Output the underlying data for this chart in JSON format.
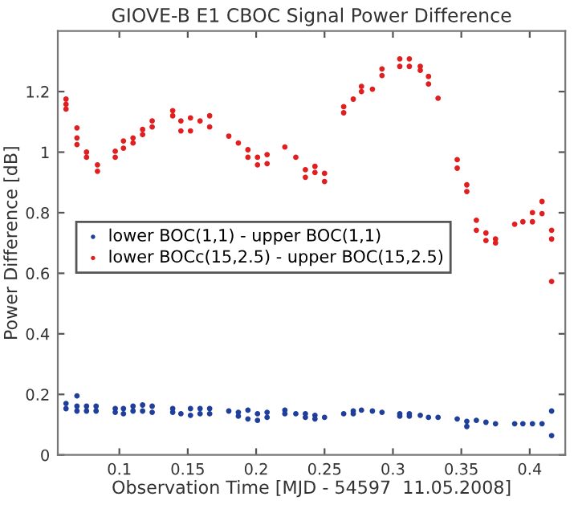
{
  "chart_data": {
    "type": "scatter",
    "title": "GIOVE-B E1 CBOC Signal Power Difference",
    "xlabel": "Observation Time [MJD - 54597  11.05.2008]",
    "ylabel": "Power Difference [dB]",
    "xlim": [
      0.055,
      0.426
    ],
    "xticks": [
      0.1,
      0.15,
      0.2,
      0.25,
      0.3,
      0.35,
      0.4
    ],
    "ylim": [
      0,
      1.4
    ],
    "yticks": [
      0,
      0.2,
      0.4,
      0.6,
      0.8,
      1,
      1.2
    ],
    "grid": false,
    "legend": "left",
    "marker": "circle",
    "series": [
      {
        "name": "lower BOC(1,1) - upper BOC(1,1)",
        "color": "#1f3f9a",
        "x": [
          0.061,
          0.061,
          0.069,
          0.069,
          0.069,
          0.076,
          0.076,
          0.083,
          0.083,
          0.097,
          0.097,
          0.103,
          0.103,
          0.11,
          0.11,
          0.117,
          0.117,
          0.124,
          0.124,
          0.139,
          0.139,
          0.145,
          0.152,
          0.152,
          0.159,
          0.159,
          0.166,
          0.166,
          0.18,
          0.187,
          0.187,
          0.194,
          0.194,
          0.201,
          0.201,
          0.208,
          0.208,
          0.221,
          0.221,
          0.229,
          0.236,
          0.236,
          0.243,
          0.243,
          0.25,
          0.264,
          0.271,
          0.271,
          0.277,
          0.285,
          0.292,
          0.305,
          0.305,
          0.312,
          0.312,
          0.32,
          0.326,
          0.333,
          0.347,
          0.354,
          0.354,
          0.361,
          0.368,
          0.375,
          0.389,
          0.395,
          0.402,
          0.409,
          0.416,
          0.416
        ],
        "values": [
          0.17,
          0.153,
          0.195,
          0.161,
          0.145,
          0.161,
          0.145,
          0.161,
          0.145,
          0.153,
          0.141,
          0.153,
          0.136,
          0.161,
          0.145,
          0.165,
          0.145,
          0.161,
          0.141,
          0.153,
          0.141,
          0.136,
          0.153,
          0.131,
          0.153,
          0.136,
          0.153,
          0.136,
          0.145,
          0.141,
          0.128,
          0.148,
          0.119,
          0.136,
          0.114,
          0.141,
          0.124,
          0.148,
          0.136,
          0.136,
          0.136,
          0.124,
          0.131,
          0.119,
          0.124,
          0.136,
          0.145,
          0.136,
          0.148,
          0.145,
          0.141,
          0.136,
          0.128,
          0.136,
          0.128,
          0.131,
          0.124,
          0.124,
          0.119,
          0.111,
          0.094,
          0.114,
          0.108,
          0.103,
          0.103,
          0.103,
          0.103,
          0.103,
          0.145,
          0.064
        ]
      },
      {
        "name": "lower BOCc(15,2.5) - upper BOC(15,2.5)",
        "color": "#e02020",
        "x": [
          0.061,
          0.061,
          0.061,
          0.069,
          0.069,
          0.069,
          0.076,
          0.076,
          0.084,
          0.084,
          0.097,
          0.097,
          0.103,
          0.103,
          0.11,
          0.11,
          0.117,
          0.117,
          0.124,
          0.124,
          0.139,
          0.139,
          0.145,
          0.145,
          0.152,
          0.152,
          0.159,
          0.166,
          0.166,
          0.18,
          0.187,
          0.194,
          0.194,
          0.201,
          0.201,
          0.208,
          0.208,
          0.221,
          0.229,
          0.236,
          0.236,
          0.243,
          0.243,
          0.25,
          0.25,
          0.264,
          0.264,
          0.271,
          0.277,
          0.277,
          0.285,
          0.292,
          0.292,
          0.305,
          0.305,
          0.312,
          0.312,
          0.32,
          0.32,
          0.326,
          0.326,
          0.333,
          0.347,
          0.347,
          0.354,
          0.354,
          0.361,
          0.361,
          0.368,
          0.368,
          0.375,
          0.375,
          0.389,
          0.395,
          0.402,
          0.402,
          0.409,
          0.409,
          0.416,
          0.416,
          0.416
        ],
        "values": [
          1.175,
          1.158,
          1.142,
          1.08,
          1.047,
          1.025,
          1.0,
          0.983,
          0.958,
          0.937,
          1.003,
          0.983,
          1.037,
          1.013,
          1.047,
          1.03,
          1.075,
          1.058,
          1.103,
          1.083,
          1.137,
          1.12,
          1.103,
          1.07,
          1.113,
          1.07,
          1.103,
          1.12,
          1.083,
          1.053,
          1.03,
          1.008,
          0.983,
          0.983,
          0.958,
          0.992,
          0.962,
          1.017,
          0.983,
          0.942,
          0.917,
          0.953,
          0.933,
          0.93,
          0.903,
          1.15,
          1.13,
          1.175,
          1.217,
          1.2,
          1.208,
          1.275,
          1.253,
          1.308,
          1.283,
          1.308,
          1.283,
          1.283,
          1.27,
          1.25,
          1.225,
          1.178,
          0.975,
          0.947,
          0.892,
          0.87,
          0.775,
          0.742,
          0.733,
          0.708,
          0.713,
          0.7,
          0.762,
          0.77,
          0.8,
          0.77,
          0.837,
          0.797,
          0.742,
          0.713,
          0.573
        ]
      }
    ]
  }
}
